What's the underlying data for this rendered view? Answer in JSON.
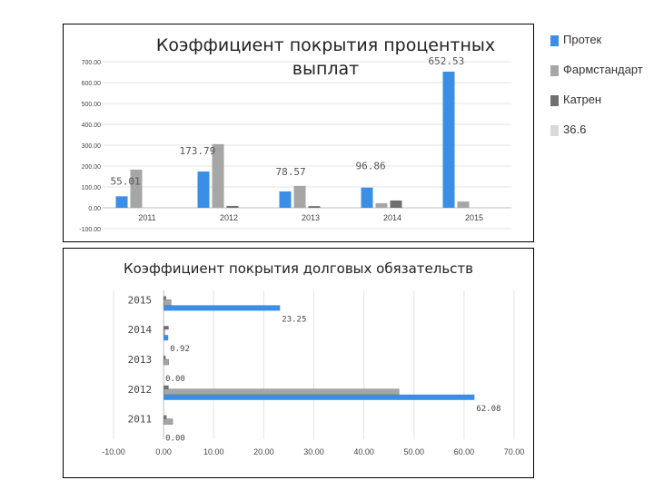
{
  "chart_data": [
    {
      "type": "bar",
      "orientation": "vertical",
      "title": "Коэффициент покрытия процентных выплат",
      "title_lines": [
        "Коэффициент покрытия процентных",
        "выплат"
      ],
      "categories": [
        "2011",
        "2012",
        "2013",
        "2014",
        "2015"
      ],
      "series": [
        {
          "name": "Протек",
          "color": "#3a8ee6",
          "values": [
            55.01,
            173.79,
            78.57,
            96.86,
            652.53
          ]
        },
        {
          "name": "Фармстандарт",
          "color": "#a6a6a6",
          "values": [
            183,
            305,
            105,
            22,
            30
          ]
        },
        {
          "name": "Катрен",
          "color": "#6f6f6f",
          "values": [
            0,
            9,
            8,
            35,
            0
          ]
        },
        {
          "name": "36.6",
          "color": "#d9d9d9",
          "values": [
            0,
            0,
            0,
            0,
            0
          ]
        }
      ],
      "data_labels": [
        "55.01",
        "173.79",
        "78.57",
        "96.86",
        "652.53"
      ],
      "ylim": [
        -100,
        700
      ],
      "yticks": [
        -100,
        0,
        100,
        200,
        300,
        400,
        500,
        600,
        700
      ],
      "ytick_labels": [
        "-100.00",
        "0.00",
        "100.00",
        "200.00",
        "300.00",
        "400.00",
        "500.00",
        "600.00",
        "700.00"
      ],
      "grid": true,
      "legend": "right"
    },
    {
      "type": "bar",
      "orientation": "horizontal",
      "title": "Коэффициент покрытия долговых обязательств",
      "categories": [
        "2011",
        "2012",
        "2013",
        "2014",
        "2015"
      ],
      "series": [
        {
          "name": "Протек",
          "color": "#3a8ee6",
          "values": [
            0.0,
            62.08,
            0.0,
            0.92,
            23.25
          ]
        },
        {
          "name": "Фармстандарт",
          "color": "#a6a6a6",
          "values": [
            1.8,
            47.0,
            1.0,
            0.2,
            1.5
          ]
        },
        {
          "name": "Катрен",
          "color": "#6f6f6f",
          "values": [
            0.6,
            1.0,
            0.4,
            1.0,
            0.5
          ]
        },
        {
          "name": "36.6",
          "color": "#d9d9d9",
          "values": [
            0.2,
            0.2,
            0.2,
            0.2,
            0.2
          ]
        }
      ],
      "data_labels": [
        "0.00",
        "62.08",
        "0.00",
        "0.92",
        "23.25"
      ],
      "xlim": [
        -10,
        70
      ],
      "xticks": [
        -10,
        0,
        10,
        20,
        30,
        40,
        50,
        60,
        70
      ],
      "xtick_labels": [
        "-10.00",
        "0.00",
        "10.00",
        "20.00",
        "30.00",
        "40.00",
        "50.00",
        "60.00",
        "70.00"
      ],
      "grid": true
    }
  ]
}
